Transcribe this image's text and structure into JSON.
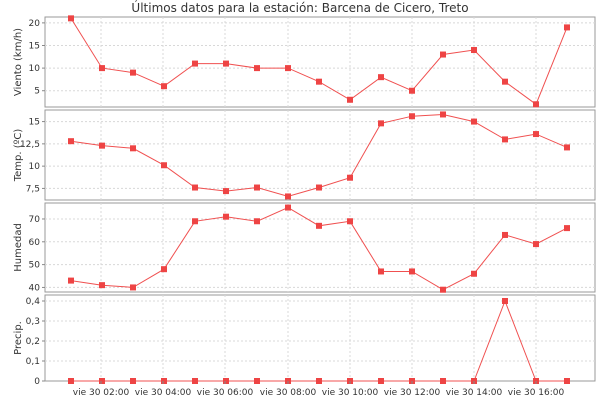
{
  "chart_data": {
    "type": "line",
    "title": "Últimos datos para la estación: Barcena de Cicero, Treto",
    "x_tick_labels": [
      "vie 30 02:00",
      "vie 30 04:00",
      "vie 30 06:00",
      "vie 30 08:00",
      "vie 30 10:00",
      "vie 30 12:00",
      "vie 30 14:00",
      "vie 30 16:00"
    ],
    "grid": true,
    "line_color": "#f05050",
    "marker_color": "#ee4444",
    "panels": [
      {
        "ylabel": "Viento (km/h)",
        "ylim": [
          1.4,
          21.3
        ],
        "yticks": [
          {
            "value": 5,
            "label": "5"
          },
          {
            "value": 10,
            "label": "10"
          },
          {
            "value": 15,
            "label": "15"
          },
          {
            "value": 20,
            "label": "20"
          }
        ],
        "values": [
          21,
          10,
          9,
          6,
          11,
          11,
          10,
          10,
          7,
          3,
          8,
          5,
          13,
          14,
          7,
          2,
          19
        ]
      },
      {
        "ylabel": "Temp. (ºC)",
        "ylim": [
          6.2,
          16.3
        ],
        "yticks": [
          {
            "value": 7.5,
            "label": "7,5"
          },
          {
            "value": 10,
            "label": "10"
          },
          {
            "value": 12.5,
            "label": "12,5"
          },
          {
            "value": 15,
            "label": "15"
          }
        ],
        "values": [
          12.8,
          12.3,
          12.0,
          10.1,
          7.6,
          7.2,
          7.6,
          6.6,
          7.6,
          8.7,
          14.8,
          15.6,
          15.8,
          15.0,
          13.0,
          13.6,
          12.1
        ]
      },
      {
        "ylabel": "Humedad",
        "ylim": [
          38,
          77
        ],
        "yticks": [
          {
            "value": 40,
            "label": "40"
          },
          {
            "value": 50,
            "label": "50"
          },
          {
            "value": 60,
            "label": "60"
          },
          {
            "value": 70,
            "label": "70"
          }
        ],
        "values": [
          43,
          41,
          40,
          48,
          69,
          71,
          69,
          75,
          67,
          69,
          47,
          47,
          39,
          46,
          63,
          59,
          66
        ]
      },
      {
        "ylabel": "Precip.",
        "ylim": [
          0,
          0.43
        ],
        "yticks": [
          {
            "value": 0,
            "label": "0"
          },
          {
            "value": 0.1,
            "label": "0,1"
          },
          {
            "value": 0.2,
            "label": "0,2"
          },
          {
            "value": 0.3,
            "label": "0,3"
          },
          {
            "value": 0.4,
            "label": "0,4"
          }
        ],
        "values": [
          0,
          0,
          0,
          0,
          0,
          0,
          0,
          0,
          0,
          0,
          0,
          0,
          0,
          0,
          0.4,
          0,
          0
        ]
      }
    ]
  }
}
